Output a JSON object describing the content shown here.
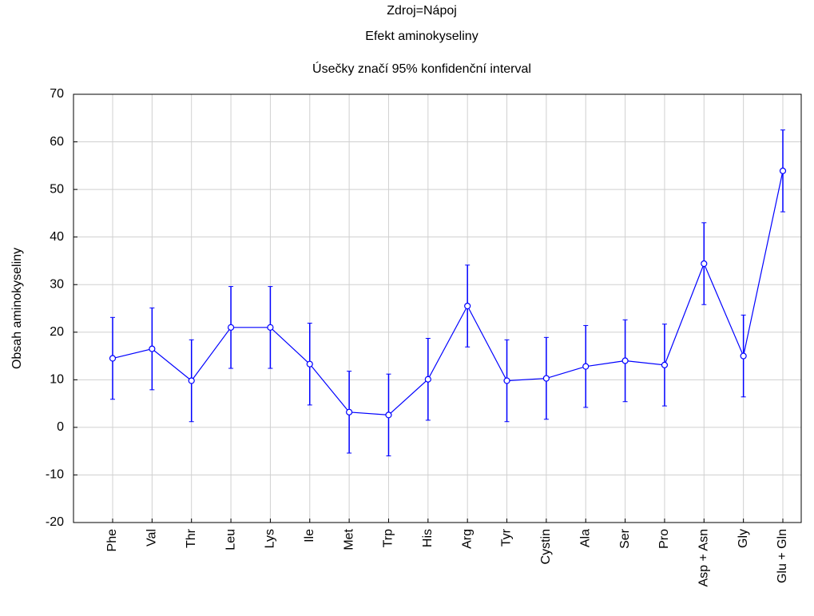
{
  "chart_data": {
    "type": "line",
    "title": "Zdroj=Nápoj",
    "subtitle": "Efekt aminokyseliny",
    "note": "Úsečky značí 95% konfidenční interval",
    "ylabel": "Obsah aminokyseliny",
    "categories": [
      "Phe",
      "Val",
      "Thr",
      "Leu",
      "Lys",
      "Ile",
      "Met",
      "Trp",
      "His",
      "Arg",
      "Tyr",
      "Cystin",
      "Ala",
      "Ser",
      "Pro",
      "Asp + Asn",
      "Gly",
      "Glu + Gln"
    ],
    "series": [
      {
        "color": "#0000ff",
        "values": [
          14.5,
          16.5,
          9.8,
          21,
          21,
          13.3,
          3.2,
          2.6,
          10.1,
          25.5,
          9.8,
          10.3,
          12.8,
          14,
          13.1,
          34.4,
          15,
          53.9
        ],
        "errors": [
          8.6,
          8.6,
          8.6,
          8.6,
          8.6,
          8.6,
          8.6,
          8.6,
          8.6,
          8.6,
          8.6,
          8.6,
          8.6,
          8.6,
          8.6,
          8.6,
          8.6,
          8.6
        ]
      }
    ],
    "ylim": [
      -20,
      70
    ],
    "yticks": [
      -20,
      -10,
      0,
      10,
      20,
      30,
      40,
      50,
      60,
      70
    ],
    "grid": true
  }
}
